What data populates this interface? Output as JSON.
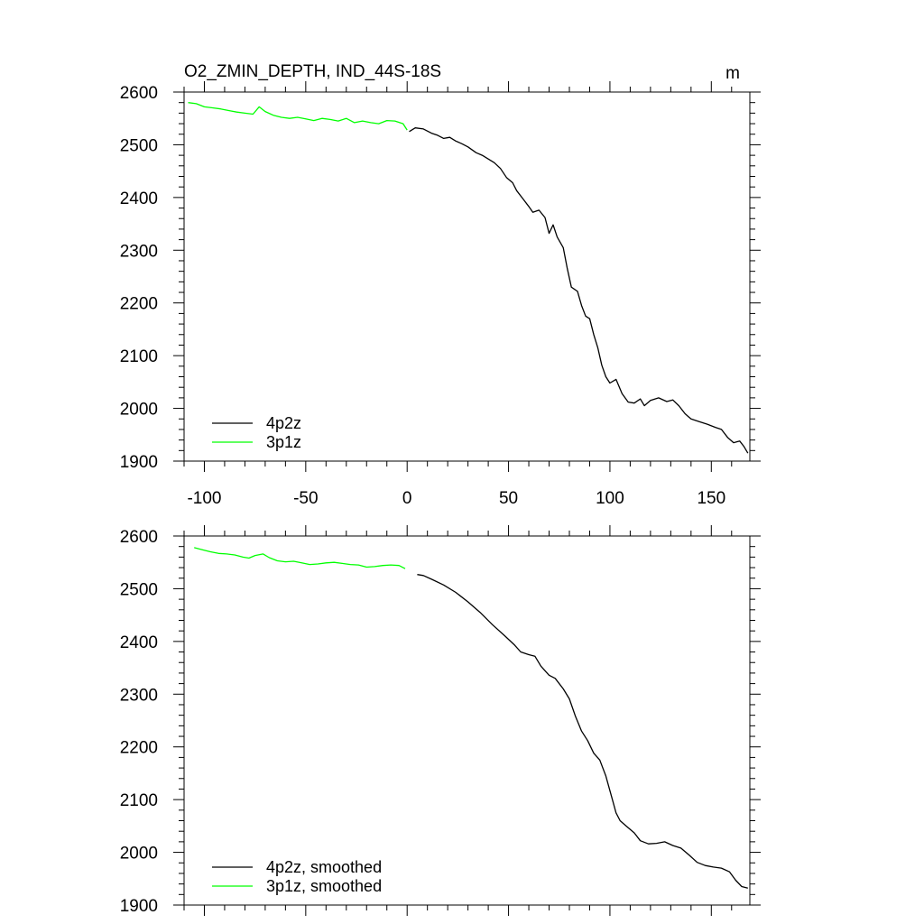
{
  "chart_data": [
    {
      "type": "line",
      "title": "O2_ZMIN_DEPTH, IND_44S-18S",
      "units": "m",
      "xlabel": "",
      "ylabel": "",
      "xlim": [
        -110,
        169
      ],
      "ylim": [
        1900,
        2600
      ],
      "x_ticks": [
        -100,
        -50,
        0,
        50,
        100,
        150
      ],
      "x_tick_labels": [
        "-100",
        "-50",
        "0",
        "50",
        "100",
        "150"
      ],
      "y_ticks": [
        1900,
        2000,
        2100,
        2200,
        2300,
        2400,
        2500,
        2600
      ],
      "y_tick_labels": [
        "1900",
        "2000",
        "2100",
        "2200",
        "2300",
        "2400",
        "2500",
        "2600"
      ],
      "legend_position": "bottom-left",
      "series": [
        {
          "name": "4p2z",
          "color": "#000000",
          "points": [
            [
              1,
              2525
            ],
            [
              4,
              2532
            ],
            [
              8,
              2530
            ],
            [
              12,
              2522
            ],
            [
              15,
              2518
            ],
            [
              18,
              2512
            ],
            [
              21,
              2514
            ],
            [
              24,
              2507
            ],
            [
              27,
              2502
            ],
            [
              30,
              2496
            ],
            [
              34,
              2485
            ],
            [
              37,
              2480
            ],
            [
              40,
              2473
            ],
            [
              43,
              2466
            ],
            [
              46,
              2455
            ],
            [
              49,
              2438
            ],
            [
              52,
              2428
            ],
            [
              54,
              2413
            ],
            [
              57,
              2398
            ],
            [
              60,
              2383
            ],
            [
              62,
              2372
            ],
            [
              65,
              2376
            ],
            [
              68,
              2362
            ],
            [
              70,
              2332
            ],
            [
              72,
              2348
            ],
            [
              74,
              2325
            ],
            [
              77,
              2305
            ],
            [
              79,
              2265
            ],
            [
              81,
              2230
            ],
            [
              84,
              2222
            ],
            [
              86,
              2195
            ],
            [
              88,
              2175
            ],
            [
              90,
              2170
            ],
            [
              92,
              2140
            ],
            [
              94,
              2115
            ],
            [
              96,
              2082
            ],
            [
              98,
              2060
            ],
            [
              100,
              2048
            ],
            [
              103,
              2055
            ],
            [
              106,
              2028
            ],
            [
              109,
              2012
            ],
            [
              112,
              2010
            ],
            [
              115,
              2018
            ],
            [
              117,
              2005
            ],
            [
              120,
              2015
            ],
            [
              124,
              2020
            ],
            [
              128,
              2013
            ],
            [
              131,
              2016
            ],
            [
              134,
              2005
            ],
            [
              137,
              1990
            ],
            [
              140,
              1980
            ],
            [
              144,
              1975
            ],
            [
              148,
              1970
            ],
            [
              152,
              1964
            ],
            [
              155,
              1960
            ],
            [
              158,
              1945
            ],
            [
              161,
              1935
            ],
            [
              164,
              1938
            ],
            [
              166,
              1928
            ],
            [
              168,
              1915
            ]
          ]
        },
        {
          "name": "3p1z",
          "color": "#00ff00",
          "points": [
            [
              -108,
              2580
            ],
            [
              -104,
              2578
            ],
            [
              -100,
              2572
            ],
            [
              -96,
              2570
            ],
            [
              -92,
              2568
            ],
            [
              -88,
              2565
            ],
            [
              -84,
              2562
            ],
            [
              -80,
              2560
            ],
            [
              -76,
              2558
            ],
            [
              -73,
              2572
            ],
            [
              -70,
              2563
            ],
            [
              -66,
              2556
            ],
            [
              -62,
              2552
            ],
            [
              -58,
              2550
            ],
            [
              -54,
              2552
            ],
            [
              -50,
              2549
            ],
            [
              -46,
              2546
            ],
            [
              -42,
              2550
            ],
            [
              -38,
              2548
            ],
            [
              -34,
              2545
            ],
            [
              -30,
              2550
            ],
            [
              -26,
              2542
            ],
            [
              -22,
              2545
            ],
            [
              -18,
              2542
            ],
            [
              -14,
              2540
            ],
            [
              -10,
              2546
            ],
            [
              -6,
              2545
            ],
            [
              -2,
              2540
            ],
            [
              0,
              2528
            ]
          ]
        }
      ]
    },
    {
      "type": "line",
      "title": "",
      "xlabel": "",
      "ylabel": "",
      "xlim": [
        -110,
        169
      ],
      "ylim": [
        1900,
        2600
      ],
      "y_ticks": [
        1900,
        2000,
        2100,
        2200,
        2300,
        2400,
        2500,
        2600
      ],
      "y_tick_labels": [
        "1900",
        "2000",
        "2100",
        "2200",
        "2300",
        "2400",
        "2500",
        "2600"
      ],
      "legend_position": "bottom-left",
      "series": [
        {
          "name": "4p2z, smoothed",
          "color": "#000000",
          "points": [
            [
              5,
              2527
            ],
            [
              8,
              2525
            ],
            [
              12,
              2518
            ],
            [
              18,
              2507
            ],
            [
              24,
              2493
            ],
            [
              30,
              2475
            ],
            [
              36,
              2455
            ],
            [
              42,
              2432
            ],
            [
              48,
              2411
            ],
            [
              53,
              2393
            ],
            [
              56,
              2380
            ],
            [
              60,
              2375
            ],
            [
              63,
              2372
            ],
            [
              66,
              2353
            ],
            [
              70,
              2336
            ],
            [
              73,
              2330
            ],
            [
              77,
              2310
            ],
            [
              80,
              2291
            ],
            [
              83,
              2258
            ],
            [
              86,
              2230
            ],
            [
              89,
              2212
            ],
            [
              92,
              2188
            ],
            [
              95,
              2175
            ],
            [
              98,
              2145
            ],
            [
              101,
              2103
            ],
            [
              103,
              2075
            ],
            [
              105,
              2060
            ],
            [
              108,
              2050
            ],
            [
              112,
              2037
            ],
            [
              115,
              2022
            ],
            [
              119,
              2016
            ],
            [
              123,
              2017
            ],
            [
              127,
              2020
            ],
            [
              131,
              2013
            ],
            [
              135,
              2008
            ],
            [
              139,
              1995
            ],
            [
              143,
              1981
            ],
            [
              147,
              1975
            ],
            [
              151,
              1972
            ],
            [
              155,
              1970
            ],
            [
              159,
              1963
            ],
            [
              162,
              1947
            ],
            [
              165,
              1935
            ],
            [
              168,
              1932
            ]
          ]
        },
        {
          "name": "3p1z, smoothed",
          "color": "#00ff00",
          "points": [
            [
              -105,
              2578
            ],
            [
              -101,
              2574
            ],
            [
              -97,
              2570
            ],
            [
              -93,
              2567
            ],
            [
              -89,
              2566
            ],
            [
              -85,
              2564
            ],
            [
              -81,
              2560
            ],
            [
              -78,
              2558
            ],
            [
              -75,
              2563
            ],
            [
              -71,
              2566
            ],
            [
              -68,
              2559
            ],
            [
              -64,
              2553
            ],
            [
              -60,
              2551
            ],
            [
              -56,
              2552
            ],
            [
              -52,
              2549
            ],
            [
              -48,
              2546
            ],
            [
              -44,
              2547
            ],
            [
              -40,
              2549
            ],
            [
              -36,
              2550
            ],
            [
              -32,
              2548
            ],
            [
              -28,
              2546
            ],
            [
              -24,
              2545
            ],
            [
              -20,
              2541
            ],
            [
              -16,
              2542
            ],
            [
              -12,
              2544
            ],
            [
              -8,
              2545
            ],
            [
              -4,
              2544
            ],
            [
              -1,
              2538
            ]
          ]
        }
      ]
    }
  ]
}
